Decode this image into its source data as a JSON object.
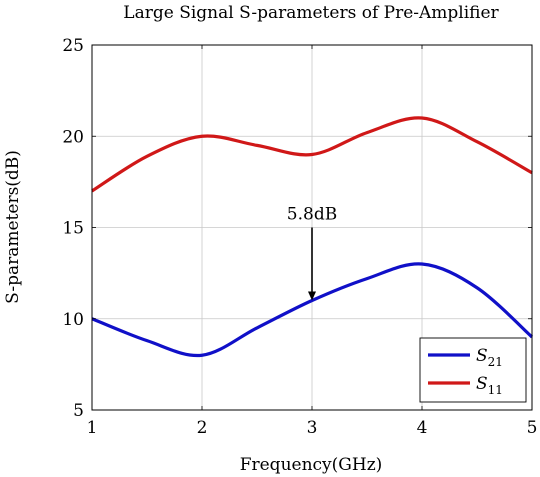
{
  "chart_data": {
    "type": "line",
    "title": "Large Signal S-parameters of Pre-Amplifier",
    "xlabel": "Frequency(GHz)",
    "ylabel": "S-parameters(dB)",
    "xlim": [
      1,
      5
    ],
    "ylim": [
      5,
      25
    ],
    "xticks": [
      1,
      2,
      3,
      4,
      5
    ],
    "yticks": [
      5,
      10,
      15,
      20,
      25
    ],
    "grid": true,
    "legend_position": "bottom-right",
    "x": [
      1,
      1.5,
      2,
      2.5,
      3,
      3.5,
      4,
      4.5,
      5
    ],
    "series": [
      {
        "name": "S21",
        "legend_main": "S",
        "legend_sub": "21",
        "color": "#1010c8",
        "values": [
          10,
          8.8,
          8,
          9.5,
          11,
          12.2,
          13,
          11.7,
          9
        ]
      },
      {
        "name": "S11",
        "legend_main": "S",
        "legend_sub": "11",
        "color": "#d01818",
        "values": [
          17,
          18.9,
          20,
          19.5,
          19,
          20.2,
          21,
          19.7,
          18
        ]
      }
    ],
    "annotation": {
      "text": "5.8dB",
      "x": 3,
      "y_from": 15,
      "y_to": 11
    }
  }
}
